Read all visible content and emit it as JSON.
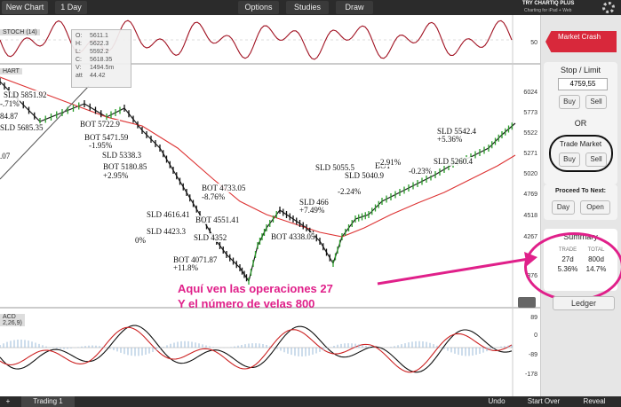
{
  "toolbar": {
    "new_chart": "New Chart",
    "interval": "1 Day",
    "menu": [
      "Options",
      "Studies",
      "Draw"
    ],
    "promo": "TRY CHARTIQ PLUS",
    "promo_sub": "Charting for iPad + Web"
  },
  "stoch": {
    "label": "STOCH (14)",
    "axis": [
      "50"
    ]
  },
  "tooltip": {
    "rows": [
      [
        "O:",
        "5611.1"
      ],
      [
        "H:",
        "5622.3"
      ],
      [
        "L:",
        "5592.2"
      ],
      [
        "C:",
        "5618.35"
      ],
      [
        "V:",
        "1494.5m"
      ],
      [
        "att",
        "44.42"
      ]
    ]
  },
  "main": {
    "label": "HART",
    "axis": [
      "6024",
      "5773",
      "5522",
      "5271",
      "5020",
      "4769",
      "4518",
      "4267",
      "376"
    ],
    "trades": [
      "SLD 5851.92",
      "-.71%",
      "84.87",
      "SLD 5685.35",
      ".07",
      "BOT 5722.9",
      "BOT 5471.59",
      "-1.95%",
      "SLD 5338.3",
      "BOT 5180.85",
      "+2.95%",
      "BOT 4733.05",
      "-8.76%",
      "SLD 4616.41",
      "BOT 4551.41",
      "SLD 4423.3",
      "0%",
      "SLD 4352",
      "BOT 4071.87",
      "+11.8%",
      "BOT 4338.05",
      "SLD 466",
      "+7.49%",
      "SLD 5055.5",
      "BOT",
      "SLD 5040.9",
      "-2.91%",
      "-2.24%",
      "-0.23%",
      "SLD 5260.4",
      "SLD 5542.4",
      "+5.36%"
    ]
  },
  "note": {
    "lines": [
      "Aquí ven las operaciones 27",
      "Y el número de velas 800"
    ]
  },
  "macd": {
    "label": "ACD",
    "params": "2,26,9)",
    "axis": [
      "89",
      "0",
      "-89",
      "-178"
    ]
  },
  "panel": {
    "market_crash": "Market Crash",
    "stop_limit": "Stop / Limit",
    "limit_value": "4759,55",
    "buy": "Buy",
    "sell": "Sell",
    "or": "OR",
    "trade_market": "Trade Market",
    "buy2": "Buy",
    "sell2": "Sell",
    "proceed": "Proceed To Next:",
    "day": "Day",
    "open": "Open",
    "summary": "Summary",
    "col1": "TRADE",
    "col2": "TOTAL",
    "trade_count": "27d",
    "total_count": "800d",
    "trade_pct": "5.36%",
    "total_pct": "14.7%",
    "ledger": "Ledger"
  },
  "bottom": {
    "add": "+",
    "tab": "Trading 1",
    "buttons": [
      "Undo",
      "Start Over",
      "Reveal"
    ]
  }
}
